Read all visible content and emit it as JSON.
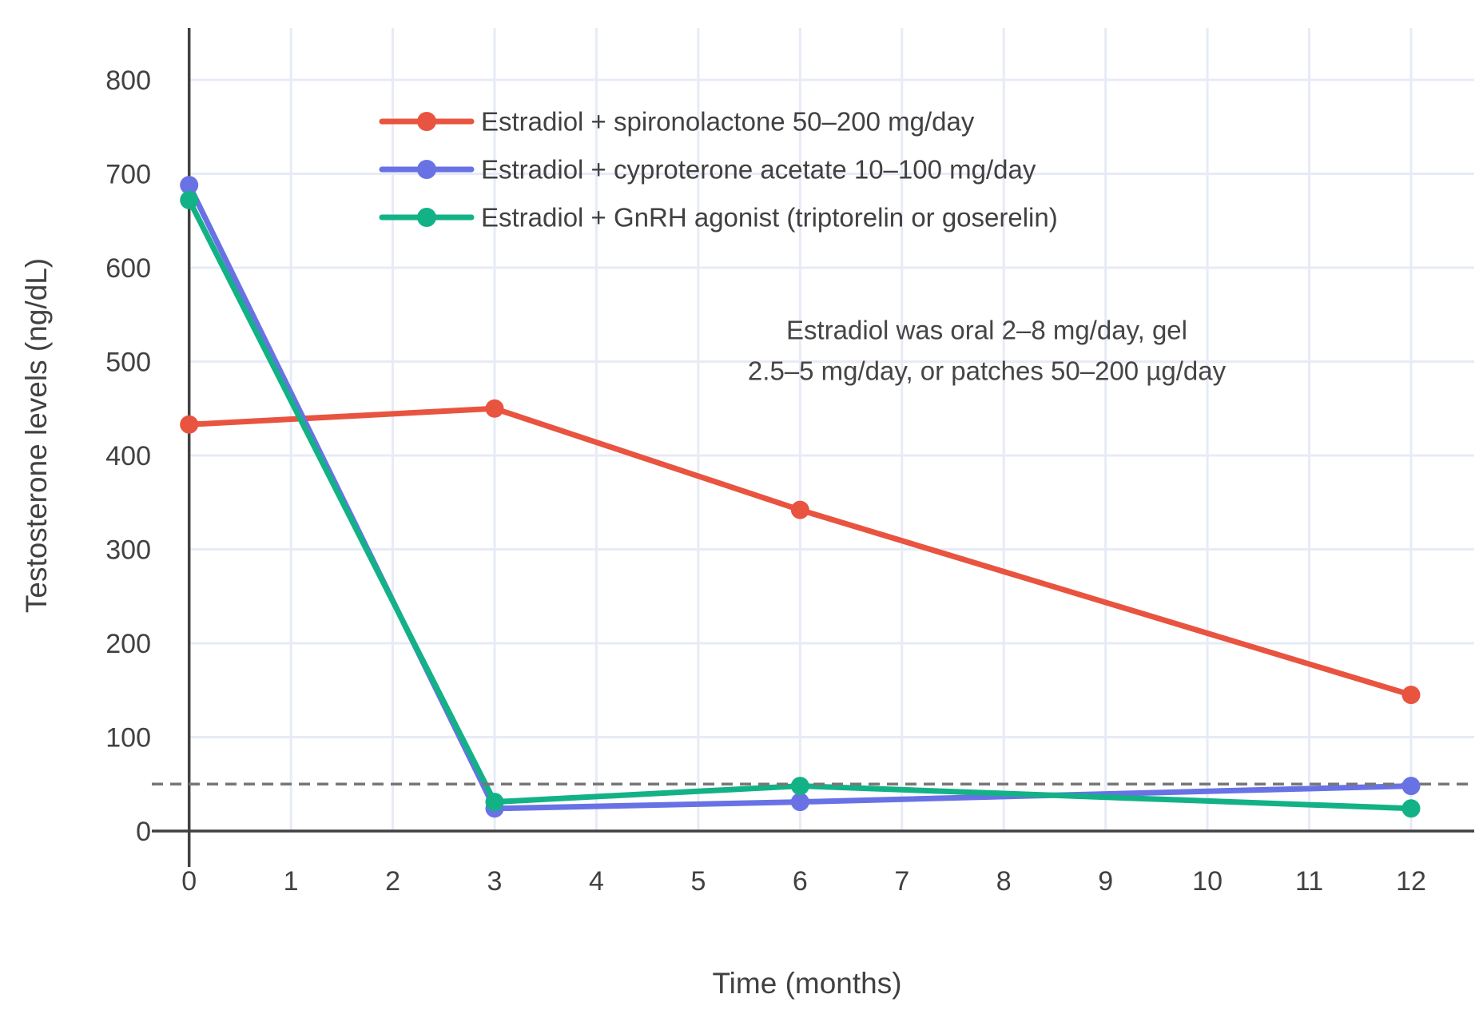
{
  "chart_data": {
    "type": "line",
    "x": [
      0,
      3,
      6,
      12
    ],
    "series": [
      {
        "name": "Estradiol + spironolactone 50–200 mg/day",
        "color": "#e85440",
        "values": [
          433,
          450,
          342,
          145
        ]
      },
      {
        "name": "Estradiol + cyproterone acetate 10–100 mg/day",
        "color": "#6872e5",
        "values": [
          688,
          24,
          31,
          48
        ]
      },
      {
        "name": "Estradiol + GnRH agonist (triptorelin or goserelin)",
        "color": "#13b286",
        "values": [
          672,
          31,
          48,
          24
        ]
      }
    ],
    "xlabel": "Time (months)",
    "ylabel": "Testosterone levels (ng/dL)",
    "xticks": [
      0,
      1,
      2,
      3,
      4,
      5,
      6,
      7,
      8,
      9,
      10,
      11,
      12
    ],
    "yticks": [
      0,
      100,
      200,
      300,
      400,
      500,
      600,
      700,
      800
    ],
    "xlim": [
      -0.37,
      12.63
    ],
    "ylim": [
      -38,
      855
    ],
    "grid": true,
    "legend_position": "top-left-inside",
    "reference_line": {
      "value": 50,
      "style": "dashed",
      "color": "#777777"
    },
    "annotation": {
      "lines": [
        "Estradiol was oral 2–8 mg/day, gel",
        "2.5–5 mg/day, or patches 50–200 µg/day"
      ]
    }
  },
  "styles": {
    "background": "#ffffff",
    "axis_color": "#414141",
    "grid_color": "#e7ebf6",
    "tick_text_color": "#414141",
    "annotation_color": "#454545"
  }
}
